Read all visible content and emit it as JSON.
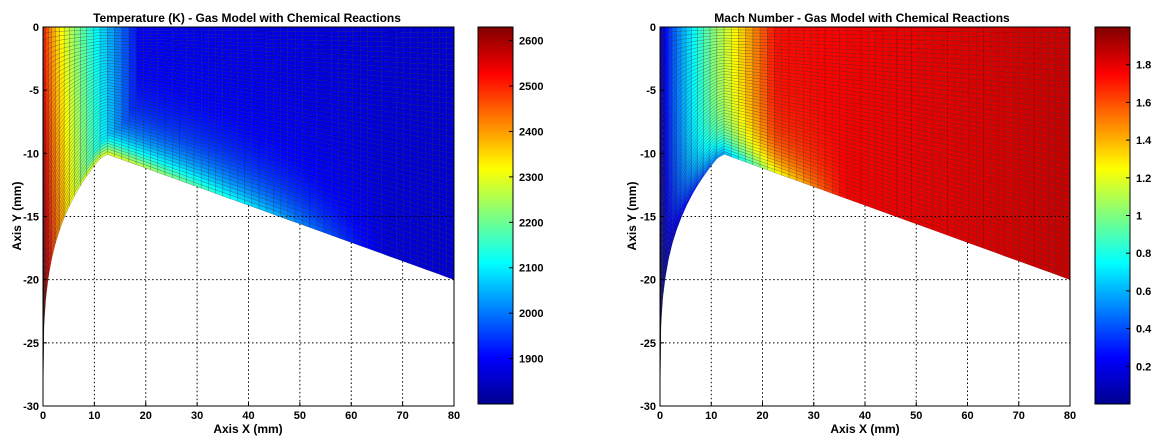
{
  "chart_data": [
    {
      "type": "heatmap",
      "title": "Temperature (K) - Gas Model with Chemical Reactions",
      "xlabel": "Axis X (mm)",
      "ylabel": "Axis Y (mm)",
      "xlim": [
        0,
        80
      ],
      "ylim": [
        -30,
        0
      ],
      "xticks": [
        "0",
        "10",
        "20",
        "30",
        "40",
        "50",
        "60",
        "70",
        "80"
      ],
      "yticks": [
        "0",
        "-5",
        "-10",
        "-15",
        "-20",
        "-25",
        "-30"
      ],
      "grid": true,
      "colorbar": {
        "min": 1800,
        "max": 2630,
        "ticks": [
          "1900",
          "2000",
          "2100",
          "2200",
          "2300",
          "2400",
          "2500",
          "2600"
        ]
      },
      "field": "temperature",
      "body_tip": [
        12,
        -10
      ],
      "body_end": [
        80,
        -20
      ]
    },
    {
      "type": "heatmap",
      "title": "Mach Number -  Gas Model with Chemical Reactions",
      "xlabel": "Axis X (mm)",
      "ylabel": "Axis Y (mm)",
      "xlim": [
        0,
        80
      ],
      "ylim": [
        -30,
        0
      ],
      "xticks": [
        "0",
        "10",
        "20",
        "30",
        "40",
        "50",
        "60",
        "70",
        "80"
      ],
      "yticks": [
        "0",
        "-5",
        "-10",
        "-15",
        "-20",
        "-25",
        "-30"
      ],
      "grid": true,
      "colorbar": {
        "min": 0.0,
        "max": 2.0,
        "ticks": [
          "0.2",
          "0.4",
          "0.6",
          "0.8",
          "1",
          "1.2",
          "1.4",
          "1.6",
          "1.8"
        ]
      },
      "field": "mach",
      "body_tip": [
        12,
        -10
      ],
      "body_end": [
        80,
        -20
      ]
    }
  ]
}
